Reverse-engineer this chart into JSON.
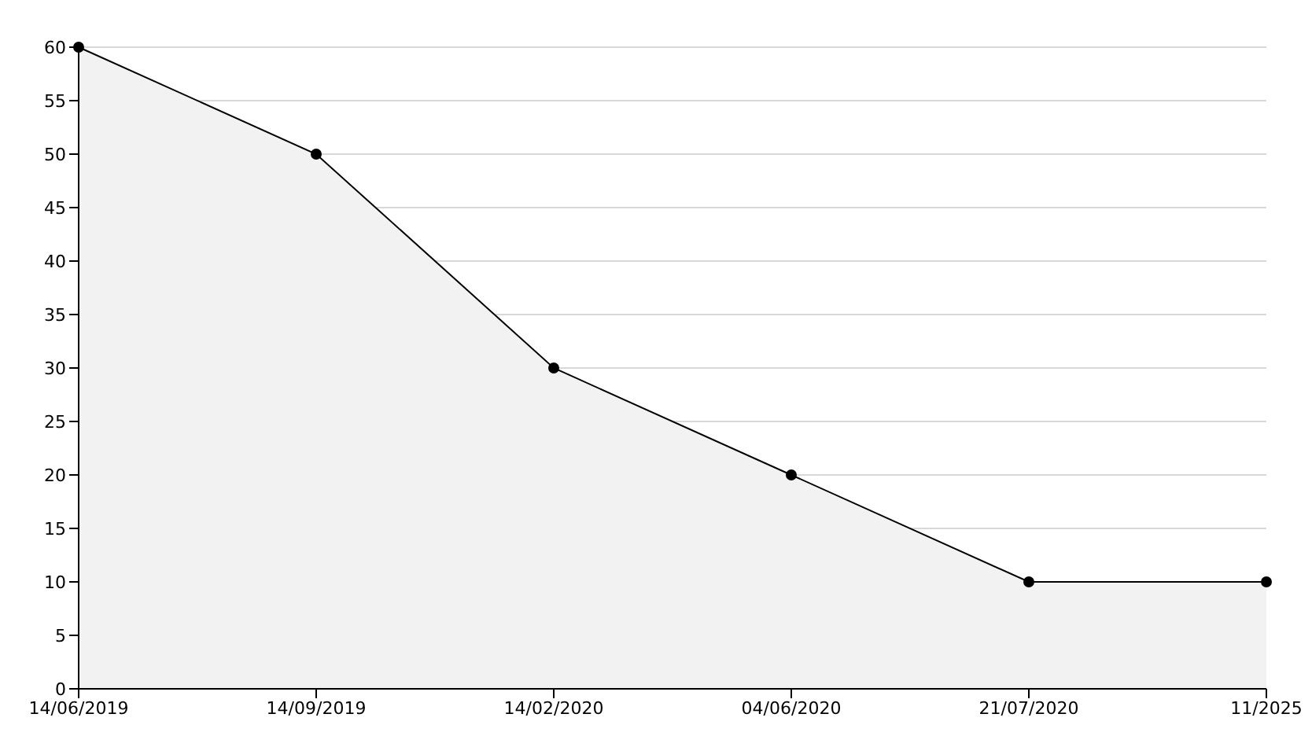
{
  "chart_data": {
    "type": "area",
    "categories": [
      "14/06/2019",
      "14/09/2019",
      "14/02/2020",
      "04/06/2020",
      "21/07/2020",
      "11/2025"
    ],
    "series": [
      {
        "color": "#000000",
        "values": [
          60,
          50,
          30,
          20,
          10,
          10
        ]
      }
    ],
    "ylim": [
      0,
      60
    ],
    "yticks": [
      0,
      5,
      10,
      15,
      20,
      25,
      30,
      35,
      40,
      45,
      50,
      55,
      60
    ],
    "grid": "y",
    "marker": "circle"
  }
}
